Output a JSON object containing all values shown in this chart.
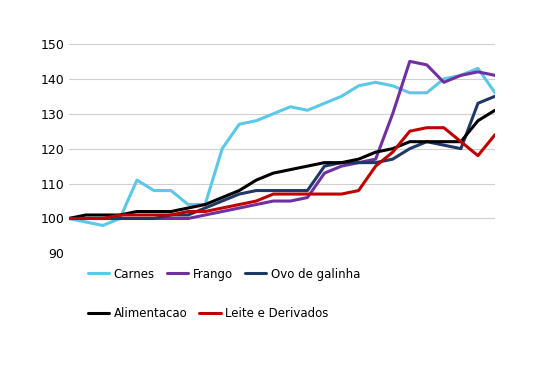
{
  "ylim": [
    90,
    150
  ],
  "yticks": [
    90,
    100,
    110,
    120,
    130,
    140,
    150
  ],
  "series": {
    "Carnes": {
      "color": "#5bc8e8",
      "values": [
        100,
        99,
        98,
        100,
        111,
        108,
        108,
        104,
        104,
        120,
        127,
        128,
        130,
        132,
        131,
        133,
        135,
        138,
        139,
        138,
        136,
        136,
        140,
        141,
        143,
        136
      ]
    },
    "Frango": {
      "color": "#7030a0",
      "values": [
        100,
        100,
        100,
        100,
        100,
        100,
        100,
        100,
        101,
        102,
        103,
        104,
        105,
        105,
        106,
        113,
        115,
        116,
        117,
        130,
        145,
        144,
        139,
        141,
        142,
        141
      ]
    },
    "Ovo de galinha": {
      "color": "#1f3864",
      "values": [
        100,
        100,
        100,
        100,
        100,
        100,
        101,
        101,
        103,
        105,
        107,
        108,
        108,
        108,
        108,
        115,
        116,
        116,
        116,
        117,
        120,
        122,
        121,
        120,
        133,
        135
      ]
    },
    "Alimentacao": {
      "color": "#000000",
      "values": [
        100,
        101,
        101,
        101,
        102,
        102,
        102,
        103,
        104,
        106,
        108,
        111,
        113,
        114,
        115,
        116,
        116,
        117,
        119,
        120,
        122,
        122,
        122,
        122,
        128,
        131
      ]
    },
    "Leite e Derivados": {
      "color": "#c00000",
      "values": [
        100,
        100,
        100,
        101,
        101,
        101,
        101,
        102,
        102,
        103,
        104,
        105,
        107,
        107,
        107,
        107,
        107,
        108,
        115,
        119,
        125,
        126,
        126,
        122,
        118,
        124
      ]
    }
  },
  "legend_order": [
    "Carnes",
    "Frango",
    "Ovo de galinha",
    "Alimentacao",
    "Leite e Derivados"
  ],
  "background_color": "#ffffff",
  "grid_color": "#d0d0d0",
  "linewidth": 2.2
}
